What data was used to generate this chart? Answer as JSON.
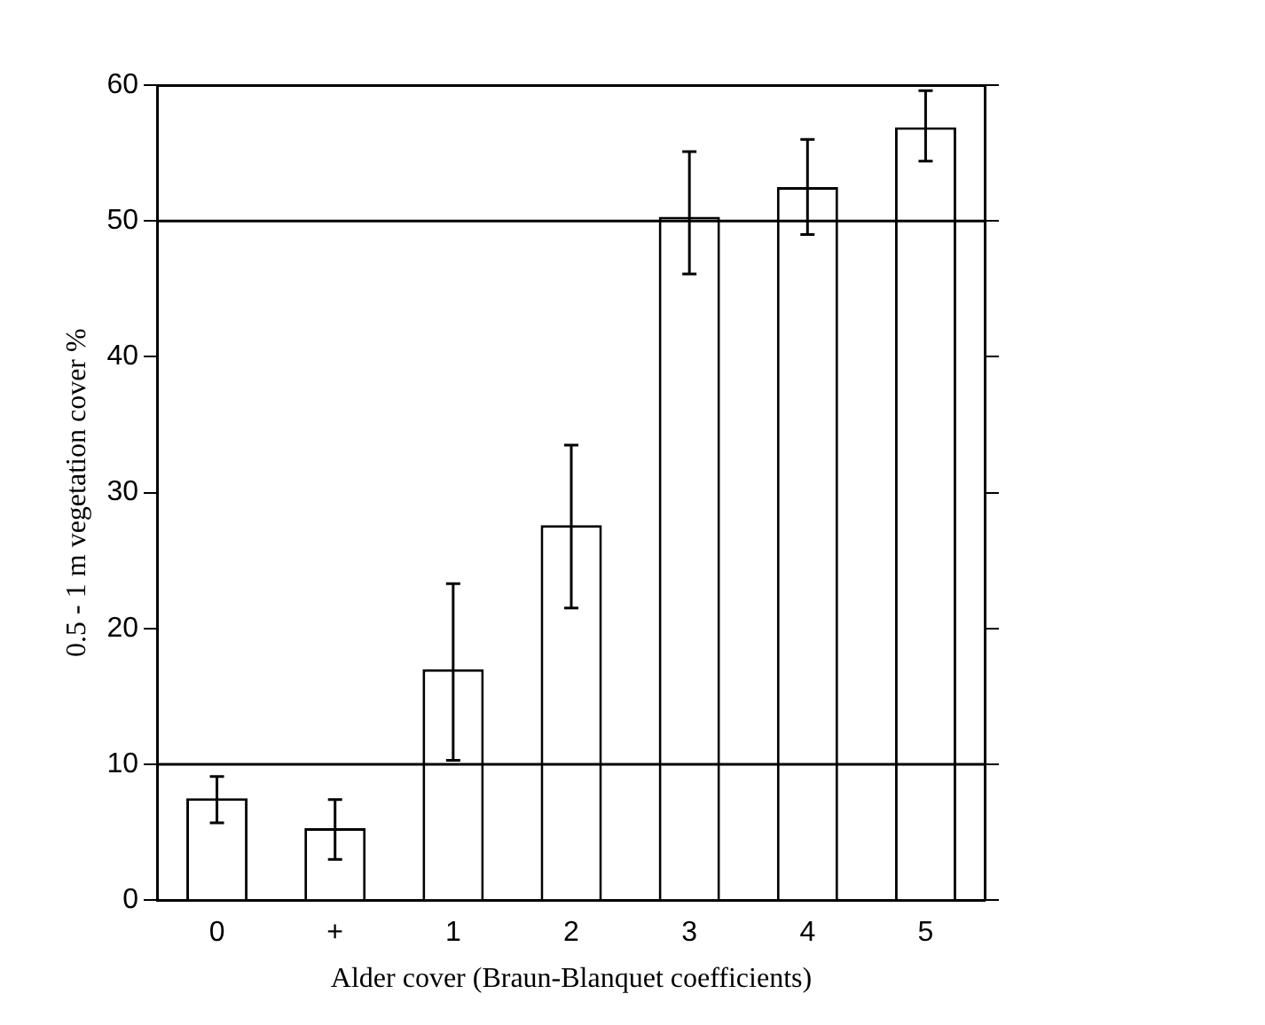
{
  "chart_data": {
    "type": "bar",
    "xlabel": "Alder cover (Braun-Blanquet coefficients)",
    "ylabel": "0.5 - 1 m vegetation cover %",
    "categories": [
      "0",
      "+",
      "1",
      "2",
      "3",
      "4",
      "5"
    ],
    "values": [
      7.5,
      5.3,
      17.0,
      27.6,
      50.3,
      52.5,
      56.9
    ],
    "errors": [
      [
        5.7,
        9.1
      ],
      [
        3.0,
        7.4
      ],
      [
        10.3,
        23.3
      ],
      [
        21.5,
        33.5
      ],
      [
        46.1,
        55.1
      ],
      [
        49.0,
        56.0
      ],
      [
        54.4,
        59.6
      ]
    ],
    "color": "#ffffff",
    "ylim": [
      0,
      60
    ],
    "yticks": [
      0,
      10,
      20,
      30,
      40,
      50,
      60
    ],
    "ref_lines": [
      {
        "axis": "y",
        "value": 10,
        "color": "#000000"
      },
      {
        "axis": "y",
        "value": 50,
        "color": "#000000"
      }
    ],
    "grid": false,
    "legend": false
  }
}
